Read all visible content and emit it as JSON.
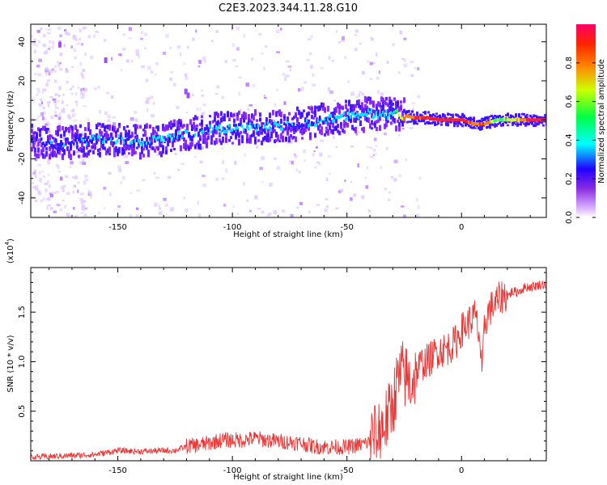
{
  "title": "C2E3.2023.344.11.28.G10",
  "colors": {
    "snr_line": "#ee3333",
    "signal_track": [
      "#2222ff",
      "#00ffff",
      "#00ff44",
      "#ff2222"
    ],
    "scatter": "#b070ff"
  },
  "chart_data": [
    {
      "type": "heatmap",
      "title": "",
      "xlabel": "Height of straight line (km)",
      "ylabel": "Frequency (Hz)",
      "xlim": [
        -188,
        37
      ],
      "ylim": [
        -50,
        49
      ],
      "xticks": [
        "-150",
        "-100",
        "-50",
        "0"
      ],
      "xtick_values": [
        -150,
        -100,
        -50,
        0
      ],
      "yticks": [
        "40",
        "20",
        "0",
        "-20",
        "-40"
      ],
      "ytick_values": [
        40,
        20,
        0,
        -20,
        -40
      ],
      "colorbar": {
        "label": "Normalized spectral amplitude",
        "range": [
          0,
          1
        ],
        "ticks": [
          "0.0",
          "0.2",
          "0.4",
          "0.6",
          "0.8"
        ],
        "tick_values": [
          0.0,
          0.2,
          0.4,
          0.6,
          0.8
        ]
      },
      "signal_track": {
        "x": [
          -188,
          -175,
          -160,
          -150,
          -140,
          -130,
          -120,
          -110,
          -100,
          -90,
          -80,
          -70,
          -60,
          -50,
          -40,
          -30,
          -25,
          -20,
          -15,
          -10,
          -5,
          0,
          5,
          10,
          15,
          20,
          25,
          30,
          37
        ],
        "frequency": [
          -11,
          -12,
          -10,
          -10,
          -11,
          -10,
          -7,
          -5,
          -4,
          -4,
          -3,
          -2,
          0,
          2,
          3,
          3,
          2,
          1,
          1,
          0,
          0,
          0,
          -2,
          -2,
          0,
          0,
          0,
          0,
          0
        ],
        "amplitude": [
          0.25,
          0.3,
          0.35,
          0.35,
          0.35,
          0.35,
          0.35,
          0.35,
          0.35,
          0.35,
          0.35,
          0.3,
          0.35,
          0.4,
          0.4,
          0.4,
          0.8,
          0.85,
          0.9,
          0.9,
          0.9,
          0.9,
          0.85,
          0.85,
          0.6,
          0.6,
          0.8,
          0.9,
          0.9
        ]
      }
    },
    {
      "type": "line",
      "title": "",
      "xlabel": "Height of straight line (km)",
      "ylabel": "SNR (10 * v/v)",
      "scale_label": "(x10",
      "scale_exp": "4",
      "scale_close": ")",
      "xlim": [
        -188,
        37
      ],
      "ylim": [
        0,
        1.95
      ],
      "xticks": [
        "-150",
        "-100",
        "-50",
        "0"
      ],
      "xtick_values": [
        -150,
        -100,
        -50,
        0
      ],
      "yticks": [
        "1.5",
        "1.0",
        "0.5"
      ],
      "ytick_values": [
        1.5,
        1.0,
        0.5
      ],
      "series": [
        {
          "x": [
            -188,
            -180,
            -170,
            -160,
            -155,
            -150,
            -140,
            -130,
            -125,
            -120,
            -115,
            -110,
            -105,
            -100,
            -95,
            -90,
            -85,
            -80,
            -75,
            -70,
            -65,
            -60,
            -55,
            -50,
            -45,
            -40,
            -35,
            -32,
            -30,
            -28,
            -26,
            -24,
            -22,
            -20,
            -18,
            -16,
            -14,
            -12,
            -10,
            -8,
            -6,
            -4,
            -2,
            0,
            2,
            4,
            6,
            8,
            9,
            10,
            12,
            14,
            16,
            18,
            20,
            22,
            24,
            26,
            28,
            30,
            32,
            34,
            37
          ],
          "values": [
            0.03,
            0.04,
            0.05,
            0.06,
            0.08,
            0.1,
            0.09,
            0.1,
            0.1,
            0.14,
            0.15,
            0.17,
            0.2,
            0.2,
            0.2,
            0.22,
            0.2,
            0.19,
            0.18,
            0.17,
            0.14,
            0.13,
            0.13,
            0.13,
            0.15,
            0.18,
            0.3,
            0.4,
            0.55,
            0.75,
            0.85,
            0.8,
            0.75,
            0.85,
            0.95,
            0.98,
            1.0,
            1.05,
            1.1,
            1.1,
            1.12,
            1.15,
            1.2,
            1.3,
            1.35,
            1.4,
            1.45,
            1.2,
            0.8,
            1.35,
            1.5,
            1.55,
            1.6,
            1.65,
            1.65,
            1.7,
            1.7,
            1.72,
            1.75,
            1.75,
            1.76,
            1.77,
            1.78
          ]
        }
      ]
    }
  ]
}
